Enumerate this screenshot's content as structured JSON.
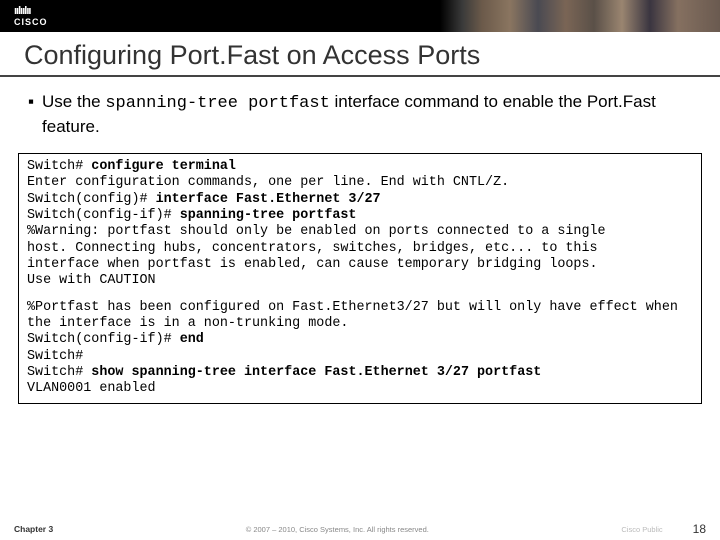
{
  "banner": {
    "logo_bars": "ıılıılıı",
    "logo_text": "CISCO"
  },
  "title": "Configuring Port.Fast on Access Ports",
  "intro": {
    "bullet": "▪",
    "text_before": "Use the ",
    "command": "spanning-tree portfast",
    "text_after": " interface command to enable the Port.Fast feature."
  },
  "terminal": {
    "block1": [
      {
        "pre": "Switch# ",
        "bold": "configure terminal",
        "post": ""
      },
      {
        "pre": "Enter configuration commands, one per line. End with CNTL/Z.",
        "bold": "",
        "post": ""
      },
      {
        "pre": "Switch(config)# ",
        "bold": "interface Fast.Ethernet 3/27",
        "post": ""
      },
      {
        "pre": "Switch(config-if)# ",
        "bold": "spanning-tree portfast",
        "post": ""
      },
      {
        "pre": "%Warning: portfast should only be enabled on ports connected to a single",
        "bold": "",
        "post": ""
      },
      {
        "pre": "host. Connecting hubs, concentrators, switches, bridges, etc... to this",
        "bold": "",
        "post": ""
      },
      {
        "pre": "interface when portfast is enabled, can cause temporary bridging loops.",
        "bold": "",
        "post": ""
      },
      {
        "pre": "Use with CAUTION",
        "bold": "",
        "post": ""
      }
    ],
    "block2": [
      {
        "pre": "%Portfast has been configured on Fast.Ethernet3/27 but will only have effect when the interface is in a non-trunking mode.",
        "bold": "",
        "post": ""
      },
      {
        "pre": "Switch(config-if)# ",
        "bold": "end",
        "post": ""
      },
      {
        "pre": "Switch#",
        "bold": "",
        "post": ""
      },
      {
        "pre": "Switch# ",
        "bold": "show spanning-tree interface Fast.Ethernet 3/27 portfast",
        "post": ""
      },
      {
        "pre": "VLAN0001    enabled",
        "bold": "",
        "post": ""
      }
    ]
  },
  "footer": {
    "left": "Chapter 3",
    "center": "© 2007 – 2010, Cisco Systems, Inc. All rights reserved.",
    "right_label": "Cisco Public",
    "page": "18"
  },
  "colors": {
    "title_rule": "#444444",
    "text": "#000000",
    "box_border": "#000000",
    "footer_text": "#888888"
  }
}
